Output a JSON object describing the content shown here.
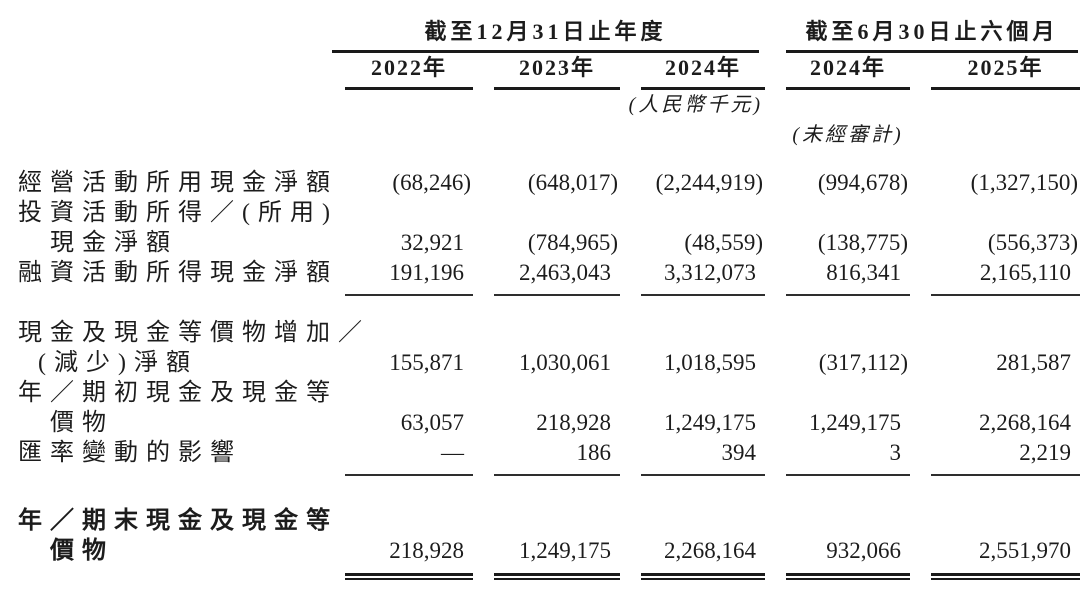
{
  "table": {
    "groups": [
      {
        "label": "截至12月31日止年度",
        "span": 3
      },
      {
        "label": "截至6月30日止六個月",
        "span": 2
      }
    ],
    "columns": [
      "2022年",
      "2023年",
      "2024年",
      "2024年",
      "2025年"
    ],
    "notes": {
      "currency_unit": "(人民幣千元)",
      "unaudited": "(未經審計)"
    },
    "rows": [
      {
        "label": "經營活動所用現金淨額",
        "values": [
          "(68,246)",
          "(648,017)",
          "(2,244,919)",
          "(994,678)",
          "(1,327,150)"
        ]
      },
      {
        "label": "投資活動所得／(所用)\n　現金淨額",
        "values": [
          "32,921",
          "(784,965)",
          "(48,559)",
          "(138,775)",
          "(556,373)"
        ]
      },
      {
        "label": "融資活動所得現金淨額",
        "values": [
          "191,196",
          "2,463,043",
          "3,312,073",
          "816,341",
          "2,165,110"
        ]
      },
      {
        "label": "現金及現金等價物增加／\n (減少)淨額",
        "values": [
          "155,871",
          "1,030,061",
          "1,018,595",
          "(317,112)",
          "281,587"
        ]
      },
      {
        "label": "年／期初現金及現金等\n　價物",
        "values": [
          "63,057",
          "218,928",
          "1,249,175",
          "1,249,175",
          "2,268,164"
        ]
      },
      {
        "label": "匯率變動的影響",
        "values": [
          "—",
          "186",
          "394",
          "3",
          "2,219"
        ]
      },
      {
        "label": "年／期末現金及現金等\n　價物",
        "values": [
          "218,928",
          "1,249,175",
          "2,268,164",
          "932,066",
          "2,551,970"
        ]
      }
    ]
  }
}
